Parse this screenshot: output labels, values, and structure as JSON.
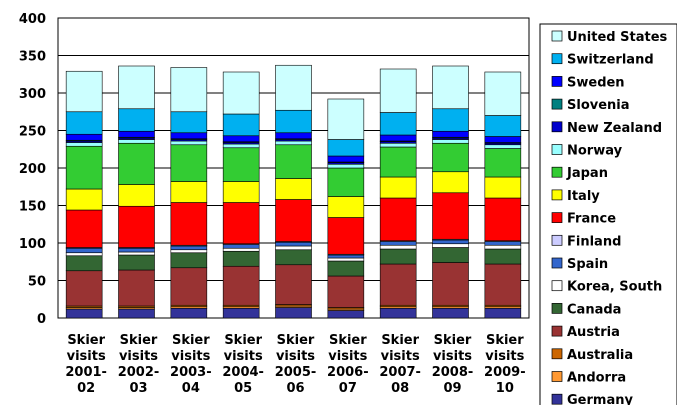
{
  "chart_data": {
    "type": "bar",
    "stacked": true,
    "title": "",
    "xlabel": "",
    "ylabel": "",
    "ylim": [
      0,
      400
    ],
    "yticks": [
      0,
      50,
      100,
      150,
      200,
      250,
      300,
      350,
      400
    ],
    "grid": true,
    "legend_position": "right",
    "highlighted_categories": [
      "Skier visits 2007-08",
      "Skier visits 2008-09",
      "Skier visits 2009-10"
    ],
    "highlight_color": "#99ccff",
    "categories": [
      [
        "Skier",
        "visits",
        "2001-",
        "02"
      ],
      [
        "Skier",
        "visits",
        "2002-",
        "03"
      ],
      [
        "Skier",
        "visits",
        "2003-",
        "04"
      ],
      [
        "Skier",
        "visits",
        "2004-",
        "05"
      ],
      [
        "Skier",
        "visits",
        "2005-",
        "06"
      ],
      [
        "Skier",
        "visits",
        "2006-",
        "07"
      ],
      [
        "Skier",
        "visits",
        "2007-",
        "08"
      ],
      [
        "Skier",
        "visits",
        "2008-",
        "09"
      ],
      [
        "Skier",
        "visits",
        "2009-",
        "10"
      ]
    ],
    "series": [
      {
        "name": "Germany",
        "color": "#333399",
        "values": [
          12,
          12,
          13,
          13,
          14,
          10,
          13,
          13,
          13
        ]
      },
      {
        "name": "Andorra",
        "color": "#ff9933",
        "values": [
          2,
          2,
          2,
          2,
          2,
          2,
          2,
          2,
          2
        ]
      },
      {
        "name": "Australia",
        "color": "#cc6600",
        "values": [
          2,
          2,
          2,
          2,
          2,
          2,
          2,
          2,
          2
        ]
      },
      {
        "name": "Austria",
        "color": "#993333",
        "values": [
          47,
          48,
          50,
          52,
          53,
          42,
          55,
          57,
          55
        ]
      },
      {
        "name": "Canada",
        "color": "#336633",
        "values": [
          20,
          20,
          20,
          20,
          20,
          20,
          20,
          20,
          20
        ]
      },
      {
        "name": "Korea, South",
        "color": "#ffffff",
        "values": [
          4,
          4,
          4,
          4,
          5,
          4,
          5,
          5,
          5
        ]
      },
      {
        "name": "Spain",
        "color": "#3366cc",
        "values": [
          6,
          5,
          5,
          5,
          5,
          4,
          5,
          5,
          5
        ]
      },
      {
        "name": "Finland",
        "color": "#ccccff",
        "values": [
          1,
          1,
          1,
          1,
          1,
          1,
          1,
          1,
          1
        ]
      },
      {
        "name": "France",
        "color": "#ff0000",
        "values": [
          50,
          55,
          57,
          55,
          56,
          49,
          57,
          62,
          57
        ]
      },
      {
        "name": "Italy",
        "color": "#ffff00",
        "values": [
          28,
          29,
          28,
          28,
          28,
          28,
          28,
          28,
          28
        ]
      },
      {
        "name": "Japan",
        "color": "#33cc33",
        "values": [
          57,
          55,
          49,
          45,
          45,
          38,
          40,
          38,
          38
        ]
      },
      {
        "name": "Norway",
        "color": "#99ffff",
        "values": [
          5,
          5,
          5,
          5,
          5,
          5,
          5,
          5,
          5
        ]
      },
      {
        "name": "New Zealand",
        "color": "#0000cc",
        "values": [
          2,
          2,
          2,
          2,
          2,
          2,
          2,
          2,
          2
        ]
      },
      {
        "name": "Slovenia",
        "color": "#008080",
        "values": [
          1,
          1,
          1,
          1,
          1,
          1,
          1,
          1,
          1
        ]
      },
      {
        "name": "Sweden",
        "color": "#0000ff",
        "values": [
          8,
          8,
          8,
          8,
          8,
          8,
          8,
          8,
          8
        ]
      },
      {
        "name": "Switzerland",
        "color": "#00b0f0",
        "values": [
          30,
          30,
          28,
          29,
          30,
          22,
          30,
          30,
          28
        ]
      },
      {
        "name": "United States",
        "color": "#ccffff",
        "values": [
          54,
          57,
          59,
          56,
          60,
          54,
          58,
          57,
          58
        ]
      }
    ]
  }
}
